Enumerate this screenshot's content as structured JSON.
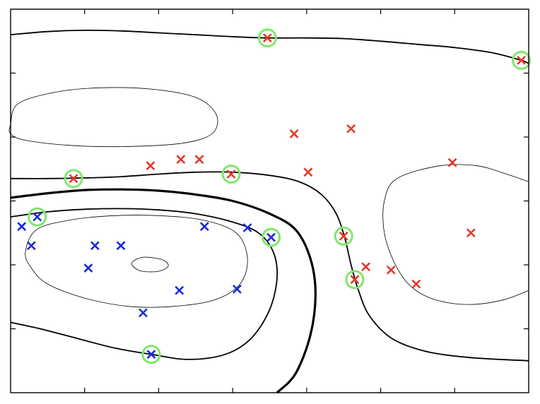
{
  "chart_data": {
    "type": "scatter",
    "title": "",
    "xlabel": "",
    "ylabel": "",
    "xlim": [
      0,
      7
    ],
    "ylim": [
      0,
      6
    ],
    "grid": false,
    "legend": "none",
    "x_ticks": [
      1,
      2,
      3,
      4,
      5,
      6
    ],
    "y_ticks": [
      1,
      2,
      3,
      4,
      5
    ],
    "colors": {
      "class_neg": "#1a2bd6",
      "class_pos": "#e23a2a",
      "support_vector_ring": "#7de86b",
      "contour": "#000000"
    },
    "marker": "x",
    "series": [
      {
        "class": "blue",
        "points": [
          [
            0.15,
            2.6
          ],
          [
            0.28,
            2.3
          ],
          [
            0.36,
            2.75
          ],
          [
            1.05,
            1.95
          ],
          [
            1.14,
            2.3
          ],
          [
            1.49,
            2.3
          ],
          [
            1.79,
            1.25
          ],
          [
            1.9,
            0.6
          ],
          [
            2.28,
            1.6
          ],
          [
            2.62,
            2.6
          ],
          [
            3.06,
            1.62
          ],
          [
            3.2,
            2.58
          ],
          [
            3.52,
            2.43
          ]
        ]
      },
      {
        "class": "red",
        "points": [
          [
            0.85,
            3.35
          ],
          [
            1.89,
            3.55
          ],
          [
            2.3,
            3.65
          ],
          [
            2.55,
            3.65
          ],
          [
            2.98,
            3.42
          ],
          [
            3.47,
            5.55
          ],
          [
            3.83,
            4.05
          ],
          [
            4.02,
            3.45
          ],
          [
            4.5,
            2.45
          ],
          [
            4.6,
            4.13
          ],
          [
            4.65,
            1.77
          ],
          [
            4.8,
            1.97
          ],
          [
            5.14,
            1.92
          ],
          [
            5.48,
            1.7
          ],
          [
            5.97,
            3.6
          ],
          [
            6.22,
            2.5
          ],
          [
            6.9,
            5.2
          ]
        ]
      }
    ],
    "support_vectors": [
      [
        0.36,
        2.75
      ],
      [
        1.9,
        0.6
      ],
      [
        3.52,
        2.43
      ],
      [
        0.85,
        3.35
      ],
      [
        2.98,
        3.42
      ],
      [
        3.47,
        5.55
      ],
      [
        4.5,
        2.45
      ],
      [
        4.65,
        1.77
      ],
      [
        6.9,
        5.2
      ]
    ],
    "contours": [
      {
        "level": "decision-boundary",
        "weight": "thick",
        "points": [
          [
            0,
            3.05
          ],
          [
            0.5,
            3.12
          ],
          [
            1,
            3.17
          ],
          [
            1.5,
            3.18
          ],
          [
            2,
            3.16
          ],
          [
            2.5,
            3.1
          ],
          [
            3,
            3.0
          ],
          [
            3.5,
            2.8
          ],
          [
            3.85,
            2.55
          ],
          [
            4.05,
            2.1
          ],
          [
            4.12,
            1.55
          ],
          [
            4.05,
            0.9
          ],
          [
            3.85,
            0.3
          ],
          [
            3.6,
            0
          ]
        ]
      },
      {
        "level": "margin",
        "weight": "medium",
        "points": [
          [
            0,
            3.35
          ],
          [
            0.5,
            3.35
          ],
          [
            1,
            3.36
          ],
          [
            1.5,
            3.38
          ],
          [
            2,
            3.42
          ],
          [
            2.5,
            3.45
          ],
          [
            3,
            3.45
          ],
          [
            3.5,
            3.4
          ],
          [
            3.9,
            3.3
          ],
          [
            4.2,
            3.1
          ],
          [
            4.4,
            2.8
          ],
          [
            4.52,
            2.4
          ],
          [
            4.6,
            2.0
          ],
          [
            4.7,
            1.6
          ],
          [
            4.85,
            1.2
          ],
          [
            5.15,
            0.85
          ],
          [
            5.6,
            0.65
          ],
          [
            6.2,
            0.55
          ],
          [
            7,
            0.5
          ]
        ]
      },
      {
        "level": "margin",
        "weight": "medium",
        "points": [
          [
            0,
            2.75
          ],
          [
            0.5,
            2.83
          ],
          [
            1,
            2.87
          ],
          [
            1.5,
            2.88
          ],
          [
            2,
            2.86
          ],
          [
            2.5,
            2.8
          ],
          [
            3,
            2.67
          ],
          [
            3.35,
            2.5
          ],
          [
            3.55,
            2.2
          ],
          [
            3.6,
            1.8
          ],
          [
            3.5,
            1.3
          ],
          [
            3.25,
            0.85
          ],
          [
            2.9,
            0.6
          ],
          [
            2.4,
            0.52
          ],
          [
            1.9,
            0.6
          ],
          [
            1.4,
            0.7
          ],
          [
            0.9,
            0.85
          ],
          [
            0.4,
            1.0
          ],
          [
            0,
            1.1
          ]
        ]
      },
      {
        "level": "margin",
        "weight": "medium",
        "points": [
          [
            0,
            5.6
          ],
          [
            0.5,
            5.65
          ],
          [
            1,
            5.67
          ],
          [
            1.5,
            5.66
          ],
          [
            2,
            5.63
          ],
          [
            2.5,
            5.6
          ],
          [
            3,
            5.57
          ],
          [
            3.47,
            5.55
          ],
          [
            4,
            5.55
          ],
          [
            4.5,
            5.54
          ],
          [
            5,
            5.5
          ],
          [
            5.5,
            5.45
          ],
          [
            6,
            5.4
          ],
          [
            6.5,
            5.32
          ],
          [
            6.9,
            5.2
          ],
          [
            7,
            5.15
          ]
        ]
      },
      {
        "level": "inner",
        "weight": "thin",
        "closed": true,
        "points": [
          [
            0.2,
            2.2
          ],
          [
            0.35,
            2.55
          ],
          [
            0.8,
            2.7
          ],
          [
            1.4,
            2.77
          ],
          [
            2.0,
            2.77
          ],
          [
            2.6,
            2.7
          ],
          [
            3.05,
            2.5
          ],
          [
            3.2,
            2.1
          ],
          [
            3.1,
            1.7
          ],
          [
            2.75,
            1.45
          ],
          [
            2.2,
            1.35
          ],
          [
            1.6,
            1.35
          ],
          [
            1.0,
            1.48
          ],
          [
            0.5,
            1.7
          ],
          [
            0.28,
            1.95
          ]
        ]
      },
      {
        "level": "inner",
        "weight": "thin",
        "closed": true,
        "points": [
          [
            1.65,
            2.05
          ],
          [
            1.8,
            2.12
          ],
          [
            2.05,
            2.08
          ],
          [
            2.13,
            1.98
          ],
          [
            2.0,
            1.9
          ],
          [
            1.78,
            1.9
          ],
          [
            1.66,
            1.97
          ]
        ]
      },
      {
        "level": "inner",
        "weight": "thin",
        "closed": true,
        "points": [
          [
            0,
            4.2
          ],
          [
            0.1,
            4.52
          ],
          [
            0.6,
            4.7
          ],
          [
            1.2,
            4.77
          ],
          [
            1.9,
            4.75
          ],
          [
            2.5,
            4.62
          ],
          [
            2.78,
            4.35
          ],
          [
            2.72,
            4.05
          ],
          [
            2.3,
            3.9
          ],
          [
            1.5,
            3.85
          ],
          [
            0.8,
            3.87
          ],
          [
            0.2,
            3.95
          ],
          [
            0,
            4.05
          ]
        ]
      },
      {
        "level": "inner",
        "weight": "thin",
        "closed": false,
        "points": [
          [
            7,
            3.3
          ],
          [
            6.7,
            3.42
          ],
          [
            6.3,
            3.55
          ],
          [
            5.8,
            3.55
          ],
          [
            5.22,
            3.35
          ],
          [
            5.05,
            3.0
          ],
          [
            5.05,
            2.5
          ],
          [
            5.2,
            2.0
          ],
          [
            5.42,
            1.65
          ],
          [
            5.75,
            1.45
          ],
          [
            6.2,
            1.38
          ],
          [
            6.65,
            1.45
          ],
          [
            7,
            1.6
          ]
        ]
      }
    ]
  }
}
